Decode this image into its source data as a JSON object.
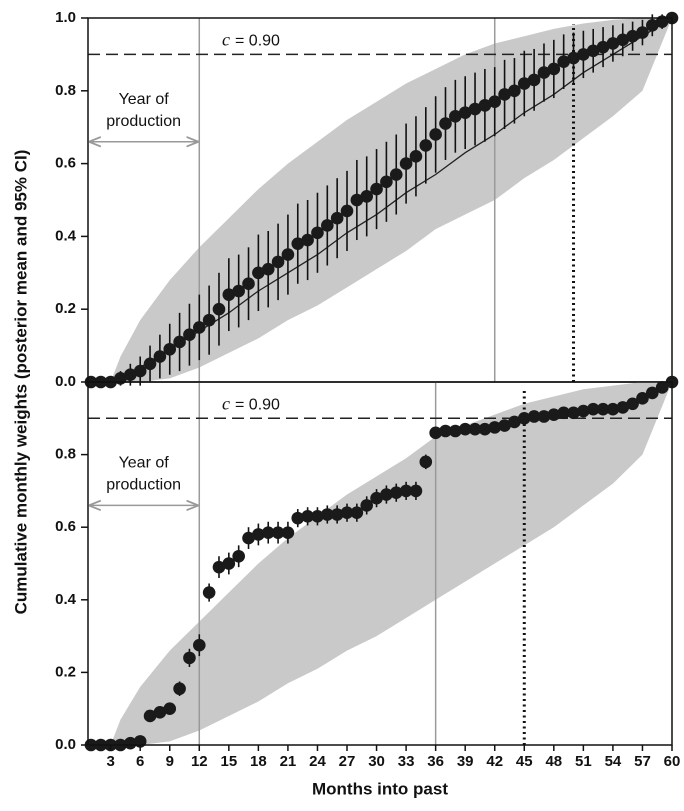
{
  "chart_data": [
    {
      "type": "scatter",
      "ylabel": "Cumulative monthly weights (posterior mean and 95% CI)",
      "xlim": [
        0.7,
        60
      ],
      "ylim": [
        0,
        1
      ],
      "yticks": [
        {
          "value": 0,
          "label": "0.0"
        },
        {
          "value": 0.2,
          "label": "0.2"
        },
        {
          "value": 0.4,
          "label": "0.4"
        },
        {
          "value": 0.6,
          "label": "0.6"
        },
        {
          "value": 0.8,
          "label": "0.8"
        },
        {
          "value": 1,
          "label": "1.0"
        }
      ],
      "color": "#1a1a1a",
      "x": [
        1,
        2,
        3,
        4,
        5,
        6,
        7,
        8,
        9,
        10,
        11,
        12,
        13,
        14,
        15,
        16,
        17,
        18,
        19,
        20,
        21,
        22,
        23,
        24,
        25,
        26,
        27,
        28,
        29,
        30,
        31,
        32,
        33,
        34,
        35,
        36,
        37,
        38,
        39,
        40,
        41,
        42,
        43,
        44,
        45,
        46,
        47,
        48,
        49,
        50,
        51,
        52,
        53,
        54,
        55,
        56,
        57,
        58,
        59,
        60
      ],
      "values": [
        0,
        0,
        0,
        0.01,
        0.02,
        0.03,
        0.05,
        0.07,
        0.09,
        0.11,
        0.13,
        0.15,
        0.17,
        0.2,
        0.24,
        0.25,
        0.27,
        0.3,
        0.31,
        0.33,
        0.35,
        0.38,
        0.39,
        0.41,
        0.43,
        0.45,
        0.47,
        0.5,
        0.51,
        0.53,
        0.55,
        0.57,
        0.6,
        0.62,
        0.65,
        0.68,
        0.71,
        0.73,
        0.74,
        0.75,
        0.76,
        0.77,
        0.79,
        0.8,
        0.82,
        0.83,
        0.85,
        0.86,
        0.88,
        0.89,
        0.9,
        0.91,
        0.92,
        0.93,
        0.94,
        0.95,
        0.96,
        0.98,
        0.99,
        1
      ],
      "errors": [
        0,
        0,
        0,
        0.02,
        0.03,
        0.04,
        0.05,
        0.06,
        0.07,
        0.08,
        0.085,
        0.09,
        0.095,
        0.1,
        0.1,
        0.1,
        0.1,
        0.105,
        0.105,
        0.105,
        0.11,
        0.11,
        0.11,
        0.11,
        0.11,
        0.11,
        0.11,
        0.11,
        0.11,
        0.11,
        0.11,
        0.11,
        0.11,
        0.11,
        0.105,
        0.105,
        0.1,
        0.1,
        0.1,
        0.1,
        0.1,
        0.095,
        0.095,
        0.09,
        0.09,
        0.085,
        0.08,
        0.08,
        0.075,
        0.07,
        0.065,
        0.06,
        0.055,
        0.05,
        0.045,
        0.04,
        0.035,
        0.03,
        0.02,
        0
      ],
      "band": {
        "color": "#c9c9c9",
        "x": [
          3,
          4,
          6,
          9,
          12,
          15,
          18,
          21,
          24,
          27,
          30,
          33,
          36,
          39,
          42,
          45,
          48,
          51,
          54,
          57,
          60
        ],
        "upper": [
          0,
          0.07,
          0.17,
          0.28,
          0.37,
          0.45,
          0.53,
          0.6,
          0.66,
          0.72,
          0.77,
          0.82,
          0.86,
          0.9,
          0.93,
          0.95,
          0.97,
          0.985,
          0.995,
          1,
          1
        ],
        "lower": [
          0,
          0,
          0,
          0.01,
          0.04,
          0.08,
          0.12,
          0.17,
          0.21,
          0.26,
          0.31,
          0.36,
          0.42,
          0.46,
          0.5,
          0.56,
          0.61,
          0.67,
          0.73,
          0.8,
          1
        ]
      },
      "mean_line": {
        "x": [
          3,
          6,
          9,
          12,
          15,
          18,
          21,
          24,
          27,
          30,
          33,
          36,
          39,
          42,
          45,
          48,
          51,
          54,
          57,
          60
        ],
        "values": [
          0,
          0.04,
          0.09,
          0.14,
          0.19,
          0.25,
          0.3,
          0.35,
          0.41,
          0.46,
          0.52,
          0.57,
          0.63,
          0.68,
          0.74,
          0.79,
          0.85,
          0.9,
          0.95,
          1
        ]
      },
      "hline": {
        "value": 0.9,
        "prefix": "c",
        "label": "= 0.90"
      },
      "vlines": [
        12,
        42
      ],
      "cutoff": 50,
      "annotation": [
        "Year of",
        "production"
      ]
    },
    {
      "type": "scatter",
      "xlabel": "Months into past",
      "xlim": [
        0.7,
        60
      ],
      "ylim": [
        0,
        1
      ],
      "yticks": [
        {
          "value": 0,
          "label": "0.0"
        },
        {
          "value": 0.2,
          "label": "0.2"
        },
        {
          "value": 0.4,
          "label": "0.4"
        },
        {
          "value": 0.6,
          "label": "0.6"
        },
        {
          "value": 0.8,
          "label": "0.8"
        }
      ],
      "xticks": [
        3,
        6,
        9,
        12,
        15,
        18,
        21,
        24,
        27,
        30,
        33,
        36,
        39,
        42,
        45,
        48,
        51,
        54,
        57,
        60
      ],
      "color": "#1a1a1a",
      "x": [
        1,
        2,
        3,
        4,
        5,
        6,
        7,
        8,
        9,
        10,
        11,
        12,
        13,
        14,
        15,
        16,
        17,
        18,
        19,
        20,
        21,
        22,
        23,
        24,
        25,
        26,
        27,
        28,
        29,
        30,
        31,
        32,
        33,
        34,
        35,
        36,
        37,
        38,
        39,
        40,
        41,
        42,
        43,
        44,
        45,
        46,
        47,
        48,
        49,
        50,
        51,
        52,
        53,
        54,
        55,
        56,
        57,
        58,
        59,
        60
      ],
      "values": [
        0,
        0,
        0,
        0,
        0.005,
        0.01,
        0.08,
        0.09,
        0.1,
        0.155,
        0.24,
        0.275,
        0.42,
        0.49,
        0.5,
        0.52,
        0.57,
        0.58,
        0.585,
        0.585,
        0.585,
        0.625,
        0.63,
        0.63,
        0.635,
        0.635,
        0.64,
        0.64,
        0.66,
        0.68,
        0.69,
        0.695,
        0.7,
        0.7,
        0.78,
        0.86,
        0.865,
        0.865,
        0.87,
        0.87,
        0.87,
        0.875,
        0.88,
        0.89,
        0.9,
        0.905,
        0.905,
        0.91,
        0.915,
        0.915,
        0.92,
        0.925,
        0.925,
        0.925,
        0.93,
        0.94,
        0.955,
        0.97,
        0.985,
        1
      ],
      "errors": [
        0,
        0,
        0,
        0,
        0.005,
        0.01,
        0.015,
        0.015,
        0.015,
        0.02,
        0.025,
        0.03,
        0.025,
        0.03,
        0.03,
        0.03,
        0.03,
        0.03,
        0.03,
        0.03,
        0.03,
        0.025,
        0.025,
        0.025,
        0.025,
        0.025,
        0.025,
        0.025,
        0.025,
        0.025,
        0.025,
        0.025,
        0.025,
        0.025,
        0.02,
        0.015,
        0.015,
        0.015,
        0.015,
        0.015,
        0.015,
        0.015,
        0.015,
        0.015,
        0.015,
        0.015,
        0.015,
        0.015,
        0.015,
        0.015,
        0.015,
        0.015,
        0.015,
        0.015,
        0.015,
        0.015,
        0.015,
        0.01,
        0.01,
        0
      ],
      "band": {
        "color": "#c9c9c9",
        "x": [
          3,
          4,
          6,
          9,
          12,
          15,
          18,
          21,
          24,
          27,
          30,
          33,
          36,
          39,
          42,
          45,
          48,
          51,
          54,
          57,
          60
        ],
        "upper": [
          0,
          0.07,
          0.16,
          0.26,
          0.34,
          0.42,
          0.5,
          0.57,
          0.63,
          0.69,
          0.74,
          0.79,
          0.85,
          0.88,
          0.91,
          0.94,
          0.96,
          0.98,
          0.99,
          1,
          1
        ],
        "lower": [
          0,
          0,
          0,
          0.01,
          0.04,
          0.08,
          0.12,
          0.17,
          0.21,
          0.26,
          0.3,
          0.35,
          0.4,
          0.45,
          0.5,
          0.55,
          0.6,
          0.66,
          0.72,
          0.8,
          1
        ]
      },
      "hline": {
        "value": 0.9,
        "prefix": "c",
        "label": "= 0.90"
      },
      "vlines": [
        12,
        36
      ],
      "cutoff": 45,
      "annotation": [
        "Year of",
        "production"
      ]
    }
  ]
}
